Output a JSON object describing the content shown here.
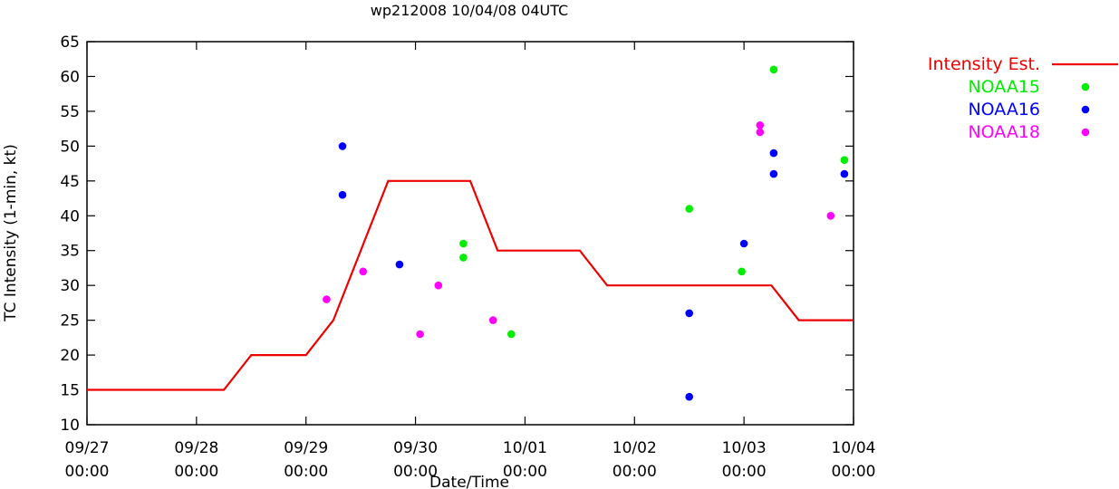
{
  "chart_data": {
    "type": "scatter",
    "title": "wp212008 10/04/08 04UTC",
    "xlabel": "Date/Time",
    "ylabel": "TC Intensity (1-min, kt)",
    "x_range": [
      "09/27 00:00",
      "10/04 00:00"
    ],
    "x_ticks": [
      {
        "line1": "09/27",
        "line2": "00:00"
      },
      {
        "line1": "09/28",
        "line2": "00:00"
      },
      {
        "line1": "09/29",
        "line2": "00:00"
      },
      {
        "line1": "09/30",
        "line2": "00:00"
      },
      {
        "line1": "10/01",
        "line2": "00:00"
      },
      {
        "line1": "10/02",
        "line2": "00:00"
      },
      {
        "line1": "10/03",
        "line2": "00:00"
      },
      {
        "line1": "10/04",
        "line2": "00:00"
      }
    ],
    "y_ticks": [
      10,
      15,
      20,
      25,
      30,
      35,
      40,
      45,
      50,
      55,
      60,
      65
    ],
    "ylim": [
      10,
      65
    ],
    "grid": false,
    "legend_position": "outside-top-right",
    "series": [
      {
        "name": "Intensity Est.",
        "kind": "line",
        "color": "#ee0000",
        "points": [
          [
            "09/27 00:00",
            15
          ],
          [
            "09/28 06:00",
            15
          ],
          [
            "09/28 12:00",
            20
          ],
          [
            "09/29 00:00",
            20
          ],
          [
            "09/29 06:00",
            25
          ],
          [
            "09/29 18:00",
            45
          ],
          [
            "09/30 12:00",
            45
          ],
          [
            "09/30 18:00",
            35
          ],
          [
            "10/01 12:00",
            35
          ],
          [
            "10/01 18:00",
            30
          ],
          [
            "10/03 06:00",
            30
          ],
          [
            "10/03 12:00",
            25
          ],
          [
            "10/04 00:00",
            25
          ]
        ]
      },
      {
        "name": "NOAA15",
        "kind": "points",
        "color": "#00ee00",
        "points": [
          [
            "09/30 10:30",
            36
          ],
          [
            "09/30 10:30",
            34
          ],
          [
            "09/30 21:00",
            23
          ],
          [
            "10/02 12:00",
            41
          ],
          [
            "10/02 23:30",
            32
          ],
          [
            "10/03 06:30",
            61
          ],
          [
            "10/03 22:00",
            48
          ]
        ]
      },
      {
        "name": "NOAA16",
        "kind": "points",
        "color": "#0000ff",
        "points": [
          [
            "09/29 08:00",
            50
          ],
          [
            "09/29 08:00",
            43
          ],
          [
            "09/29 20:30",
            33
          ],
          [
            "10/02 12:00",
            26
          ],
          [
            "10/02 12:00",
            14
          ],
          [
            "10/03 00:00",
            36
          ],
          [
            "10/03 06:30",
            49
          ],
          [
            "10/03 06:30",
            46
          ],
          [
            "10/03 22:00",
            46
          ]
        ]
      },
      {
        "name": "NOAA18",
        "kind": "points",
        "color": "#ff00ff",
        "points": [
          [
            "09/29 04:30",
            28
          ],
          [
            "09/29 12:30",
            32
          ],
          [
            "09/30 01:00",
            23
          ],
          [
            "09/30 05:00",
            30
          ],
          [
            "09/30 17:00",
            25
          ],
          [
            "10/03 03:30",
            53
          ],
          [
            "10/03 03:30",
            52
          ],
          [
            "10/03 19:00",
            40
          ]
        ]
      }
    ]
  }
}
